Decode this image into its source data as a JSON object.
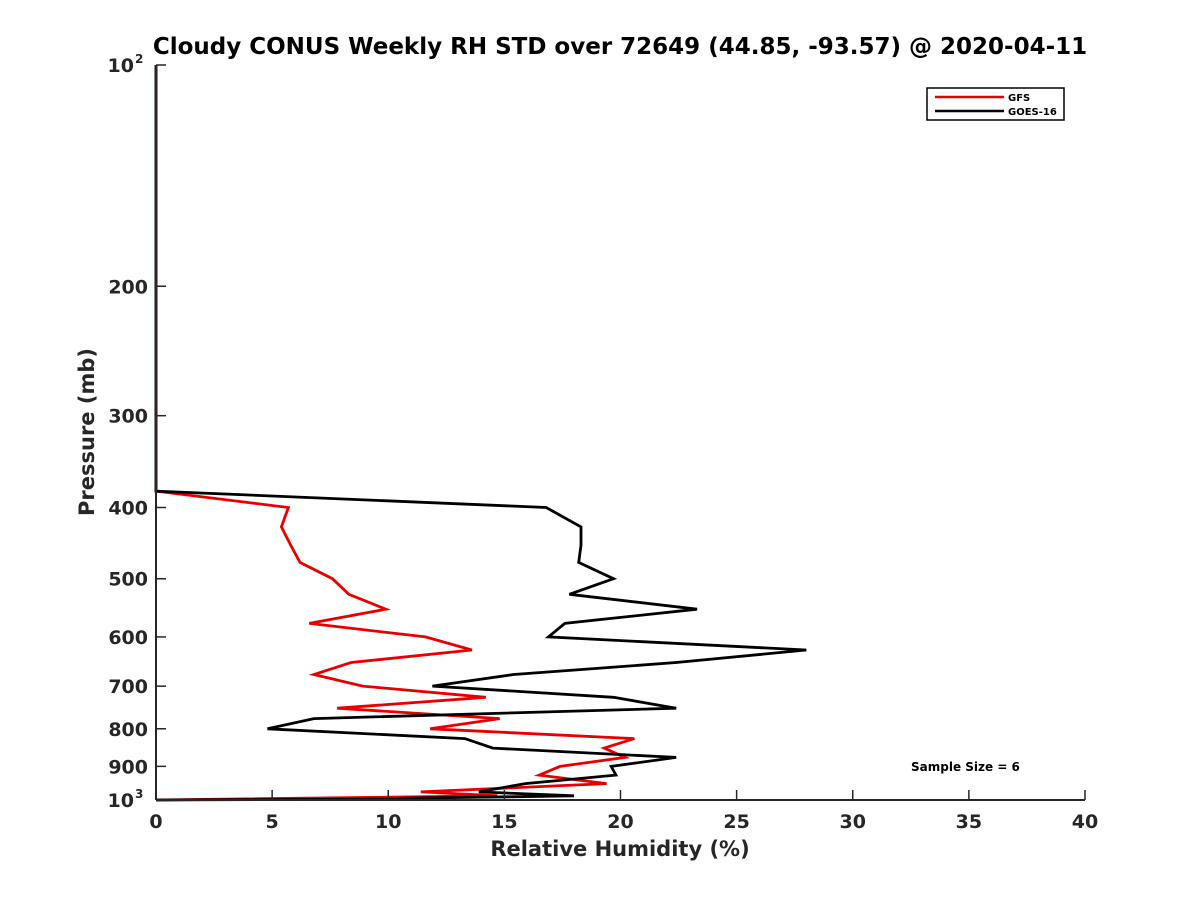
{
  "chart_data": {
    "type": "line",
    "title": "Cloudy CONUS Weekly RH STD over 72649 (44.85, -93.57) @ 2020-04-11",
    "xlabel": "Relative Humidity (%)",
    "ylabel": "Pressure (mb)",
    "xlim": [
      0,
      40
    ],
    "ylim": [
      100,
      1000
    ],
    "y_scale": "log",
    "y_reversed": true,
    "x_ticks": [
      0,
      5,
      10,
      15,
      20,
      25,
      30,
      35,
      40
    ],
    "y_ticks": [
      {
        "value": 100,
        "label": "10",
        "sup": "2"
      },
      {
        "value": 200,
        "label": "200"
      },
      {
        "value": 300,
        "label": "300"
      },
      {
        "value": 400,
        "label": "400"
      },
      {
        "value": 500,
        "label": "500"
      },
      {
        "value": 600,
        "label": "600"
      },
      {
        "value": 700,
        "label": "700"
      },
      {
        "value": 800,
        "label": "800"
      },
      {
        "value": 900,
        "label": "900"
      },
      {
        "value": 1000,
        "label": "10",
        "sup": "3"
      }
    ],
    "grid": false,
    "legend_position": "top-right",
    "annotation": "Sample Size = 6",
    "series": [
      {
        "name": "GFS",
        "color": "#e60000",
        "points": [
          [
            0,
            100
          ],
          [
            0,
            380
          ],
          [
            5.7,
            400
          ],
          [
            5.4,
            425
          ],
          [
            5.8,
            450
          ],
          [
            6.2,
            475
          ],
          [
            7.6,
            500
          ],
          [
            8.3,
            525
          ],
          [
            9.9,
            550
          ],
          [
            6.6,
            575
          ],
          [
            11.6,
            600
          ],
          [
            13.6,
            625
          ],
          [
            8.4,
            650
          ],
          [
            6.8,
            675
          ],
          [
            8.9,
            700
          ],
          [
            14.2,
            725
          ],
          [
            7.8,
            750
          ],
          [
            14.8,
            775
          ],
          [
            11.8,
            800
          ],
          [
            20.6,
            825
          ],
          [
            19.3,
            850
          ],
          [
            20.2,
            875
          ],
          [
            17.4,
            900
          ],
          [
            16.5,
            925
          ],
          [
            19.4,
            950
          ],
          [
            11.4,
            975
          ],
          [
            14.7,
            987
          ],
          [
            0,
            1000
          ]
        ]
      },
      {
        "name": "GOES-16",
        "color": "#000000",
        "points": [
          [
            0,
            100
          ],
          [
            0,
            380
          ],
          [
            16.8,
            400
          ],
          [
            18.3,
            425
          ],
          [
            18.3,
            450
          ],
          [
            18.2,
            475
          ],
          [
            19.7,
            500
          ],
          [
            17.8,
            525
          ],
          [
            23.3,
            550
          ],
          [
            17.6,
            575
          ],
          [
            16.9,
            600
          ],
          [
            28.0,
            625
          ],
          [
            22.4,
            650
          ],
          [
            15.4,
            675
          ],
          [
            11.9,
            700
          ],
          [
            19.7,
            725
          ],
          [
            22.4,
            750
          ],
          [
            6.8,
            775
          ],
          [
            4.8,
            800
          ],
          [
            13.3,
            825
          ],
          [
            14.5,
            850
          ],
          [
            22.4,
            875
          ],
          [
            19.6,
            900
          ],
          [
            19.8,
            925
          ],
          [
            15.9,
            950
          ],
          [
            13.9,
            975
          ],
          [
            18.0,
            987
          ],
          [
            15.2,
            990
          ],
          [
            11.7,
            993
          ],
          [
            10.5,
            995
          ],
          [
            11.8,
            997
          ],
          [
            0,
            1000
          ]
        ]
      }
    ]
  }
}
